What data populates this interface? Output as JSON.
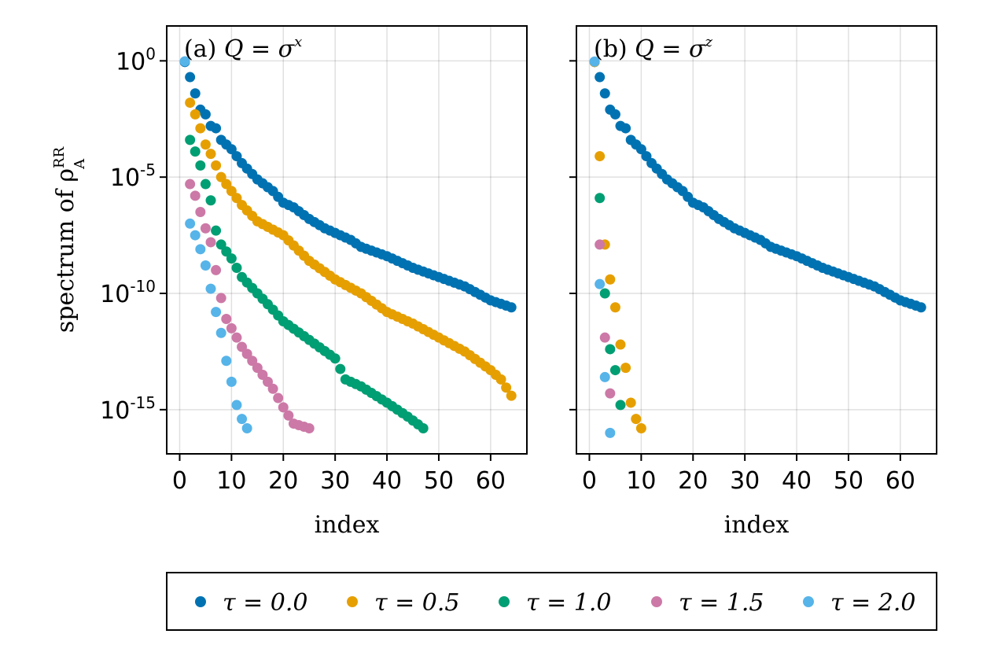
{
  "chart_data": [
    {
      "type": "scatter",
      "panel": "a",
      "title_prefix": "(a)",
      "title_math": "Q = σ",
      "title_sup": "x",
      "xlabel": "index",
      "ylabel_text": "spectrum of ρ",
      "ylabel_sup": "RR",
      "ylabel_sub": "A",
      "xlim": [
        -2.5,
        67
      ],
      "ylim_log10": [
        -16.9,
        1.5
      ],
      "xticks": [
        0,
        10,
        20,
        30,
        40,
        50,
        60
      ],
      "yticks": [
        {
          "exp": 0,
          "base": "10",
          "sup": "0"
        },
        {
          "exp": -5,
          "base": "10",
          "sup": "-5"
        },
        {
          "exp": -10,
          "base": "10",
          "sup": "-10"
        },
        {
          "exp": -15,
          "base": "10",
          "sup": "-15"
        }
      ],
      "series": [
        {
          "name": "τ = 0.0",
          "anchors": [
            [
              1,
              -0.05
            ],
            [
              2,
              -0.7
            ],
            [
              3,
              -1.4
            ],
            [
              4,
              -2.1
            ],
            [
              5,
              -2.3
            ],
            [
              6,
              -2.8
            ],
            [
              7,
              -2.9
            ],
            [
              8,
              -3.4
            ],
            [
              10,
              -3.8
            ],
            [
              12,
              -4.4
            ],
            [
              15,
              -5.1
            ],
            [
              18,
              -5.6
            ],
            [
              20,
              -6.1
            ],
            [
              22,
              -6.3
            ],
            [
              25,
              -6.8
            ],
            [
              28,
              -7.2
            ],
            [
              30,
              -7.4
            ],
            [
              33,
              -7.7
            ],
            [
              35,
              -8.0
            ],
            [
              40,
              -8.4
            ],
            [
              45,
              -8.9
            ],
            [
              50,
              -9.3
            ],
            [
              55,
              -9.7
            ],
            [
              60,
              -10.3
            ],
            [
              64,
              -10.6
            ]
          ],
          "n_points": 64
        },
        {
          "name": "τ = 0.5",
          "anchors": [
            [
              2,
              -1.8
            ],
            [
              3,
              -2.3
            ],
            [
              4,
              -2.9
            ],
            [
              5,
              -3.6
            ],
            [
              6,
              -4.0
            ],
            [
              7,
              -4.5
            ],
            [
              8,
              -5.0
            ],
            [
              10,
              -5.6
            ],
            [
              12,
              -6.2
            ],
            [
              15,
              -6.9
            ],
            [
              20,
              -7.5
            ],
            [
              25,
              -8.6
            ],
            [
              30,
              -9.4
            ],
            [
              35,
              -10.0
            ],
            [
              40,
              -10.8
            ],
            [
              45,
              -11.3
            ],
            [
              50,
              -11.9
            ],
            [
              55,
              -12.5
            ],
            [
              60,
              -13.3
            ],
            [
              62,
              -13.7
            ],
            [
              64,
              -14.4
            ]
          ],
          "n_points": 63
        },
        {
          "name": "τ = 1.0",
          "anchors": [
            [
              2,
              -3.4
            ],
            [
              3,
              -3.9
            ],
            [
              4,
              -4.5
            ],
            [
              5,
              -5.3
            ],
            [
              6,
              -6.0
            ],
            [
              7,
              -7.3
            ],
            [
              8,
              -7.9
            ],
            [
              10,
              -8.5
            ],
            [
              12,
              -9.3
            ],
            [
              15,
              -10.0
            ],
            [
              18,
              -10.7
            ],
            [
              20,
              -11.2
            ],
            [
              25,
              -12.0
            ],
            [
              30,
              -12.8
            ],
            [
              32,
              -13.7
            ],
            [
              35,
              -14.0
            ],
            [
              40,
              -14.7
            ],
            [
              44,
              -15.3
            ],
            [
              47,
              -15.8
            ]
          ],
          "n_points": 46
        },
        {
          "name": "τ = 1.5",
          "anchors": [
            [
              2,
              -5.3
            ],
            [
              3,
              -5.8
            ],
            [
              4,
              -6.5
            ],
            [
              5,
              -7.2
            ],
            [
              6,
              -7.8
            ],
            [
              7,
              -9.0
            ],
            [
              8,
              -10.2
            ],
            [
              9,
              -11.1
            ],
            [
              10,
              -11.5
            ],
            [
              12,
              -12.3
            ],
            [
              15,
              -13.2
            ],
            [
              18,
              -14.1
            ],
            [
              20,
              -14.9
            ],
            [
              22,
              -15.6
            ],
            [
              25,
              -15.8
            ]
          ],
          "n_points": 24
        },
        {
          "name": "τ = 2.0",
          "anchors": [
            [
              1,
              -0.02
            ],
            [
              2,
              -7.0
            ],
            [
              3,
              -7.5
            ],
            [
              4,
              -8.1
            ],
            [
              5,
              -8.8
            ],
            [
              6,
              -9.8
            ],
            [
              7,
              -10.8
            ],
            [
              8,
              -11.7
            ],
            [
              9,
              -12.9
            ],
            [
              10,
              -13.8
            ],
            [
              11,
              -14.8
            ],
            [
              12,
              -15.4
            ],
            [
              13,
              -15.8
            ]
          ],
          "n_points": 13
        }
      ]
    },
    {
      "type": "scatter",
      "panel": "b",
      "title_prefix": "(b)",
      "title_math": "Q = σ",
      "title_sup": "z",
      "xlabel": "index",
      "xlim": [
        -2.5,
        67
      ],
      "ylim_log10": [
        -16.9,
        1.5
      ],
      "xticks": [
        0,
        10,
        20,
        30,
        40,
        50,
        60
      ],
      "series": [
        {
          "name": "τ = 0.0",
          "anchors": [
            [
              1,
              -0.05
            ],
            [
              2,
              -0.7
            ],
            [
              3,
              -1.4
            ],
            [
              4,
              -2.1
            ],
            [
              5,
              -2.3
            ],
            [
              6,
              -2.8
            ],
            [
              7,
              -2.9
            ],
            [
              8,
              -3.4
            ],
            [
              10,
              -3.8
            ],
            [
              12,
              -4.4
            ],
            [
              15,
              -5.1
            ],
            [
              18,
              -5.6
            ],
            [
              20,
              -6.1
            ],
            [
              22,
              -6.3
            ],
            [
              25,
              -6.8
            ],
            [
              28,
              -7.2
            ],
            [
              30,
              -7.4
            ],
            [
              33,
              -7.7
            ],
            [
              35,
              -8.0
            ],
            [
              40,
              -8.4
            ],
            [
              45,
              -8.9
            ],
            [
              50,
              -9.3
            ],
            [
              55,
              -9.7
            ],
            [
              60,
              -10.3
            ],
            [
              64,
              -10.6
            ]
          ],
          "n_points": 64
        },
        {
          "name": "τ = 0.5",
          "points": [
            [
              1,
              -0.05
            ],
            [
              2,
              -4.1
            ],
            [
              3,
              -7.9
            ],
            [
              4,
              -9.4
            ],
            [
              5,
              -10.6
            ],
            [
              6,
              -12.2
            ],
            [
              7,
              -13.2
            ],
            [
              8,
              -14.7
            ],
            [
              9,
              -15.4
            ],
            [
              10,
              -15.8
            ]
          ]
        },
        {
          "name": "τ = 1.0",
          "points": [
            [
              2,
              -5.9
            ],
            [
              3,
              -10.0
            ],
            [
              4,
              -12.4
            ],
            [
              5,
              -13.3
            ],
            [
              6,
              -14.8
            ]
          ]
        },
        {
          "name": "τ = 1.5",
          "points": [
            [
              2,
              -7.9
            ],
            [
              3,
              -11.9
            ],
            [
              4,
              -14.3
            ]
          ]
        },
        {
          "name": "τ = 2.0",
          "points": [
            [
              1,
              -0.03
            ],
            [
              2,
              -9.6
            ],
            [
              3,
              -13.6
            ],
            [
              4,
              -16.0
            ]
          ]
        }
      ]
    }
  ],
  "legend": [
    {
      "label": "τ = 0.0",
      "color": "#0072b2"
    },
    {
      "label": "τ = 0.5",
      "color": "#e69f00"
    },
    {
      "label": "τ = 1.0",
      "color": "#009e73"
    },
    {
      "label": "τ = 1.5",
      "color": "#cc79a7"
    },
    {
      "label": "τ = 2.0",
      "color": "#56b4e9"
    }
  ]
}
